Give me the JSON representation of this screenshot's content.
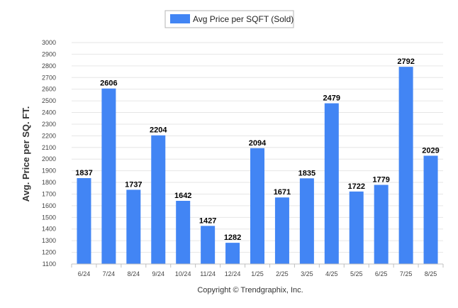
{
  "chart_data": {
    "type": "bar",
    "categories": [
      "6/24",
      "7/24",
      "8/24",
      "9/24",
      "10/24",
      "11/24",
      "12/24",
      "1/25",
      "2/25",
      "3/25",
      "4/25",
      "5/25",
      "6/25",
      "7/25",
      "8/25"
    ],
    "series": [
      {
        "name": "Avg Price per SQFT (Sold)",
        "values": [
          1837,
          2606,
          1737,
          2204,
          1642,
          1427,
          1282,
          2094,
          1671,
          1835,
          2479,
          1722,
          1779,
          2792,
          2029
        ],
        "color": "#4285f4"
      }
    ],
    "data_labels": [
      "1837",
      "2606",
      "1737",
      "2204",
      "1642",
      "1427",
      "1282",
      "2094",
      "1671",
      "1835",
      "2479",
      "1722",
      "1779",
      "2792",
      "2029"
    ],
    "ylabel": "Avg. Price per SQ. FT.",
    "xlabel": "",
    "ylim": [
      1100,
      3000
    ],
    "y_ticks": [
      "1100",
      "1200",
      "1300",
      "1400",
      "1500",
      "1600",
      "1700",
      "1800",
      "1900",
      "2000",
      "2100",
      "2200",
      "2300",
      "2400",
      "2500",
      "2600",
      "2700",
      "2800",
      "2900",
      "3000"
    ],
    "legend": {
      "label": "Avg Price per SQFT (Sold)",
      "placement": "top-center"
    },
    "grid": true
  },
  "footer": {
    "copyright": "Copyright © Trendgraphix, Inc."
  },
  "colors": {
    "bar": "#4285f4",
    "grid": "#e6e6e6",
    "axis": "#c0c0c0"
  }
}
